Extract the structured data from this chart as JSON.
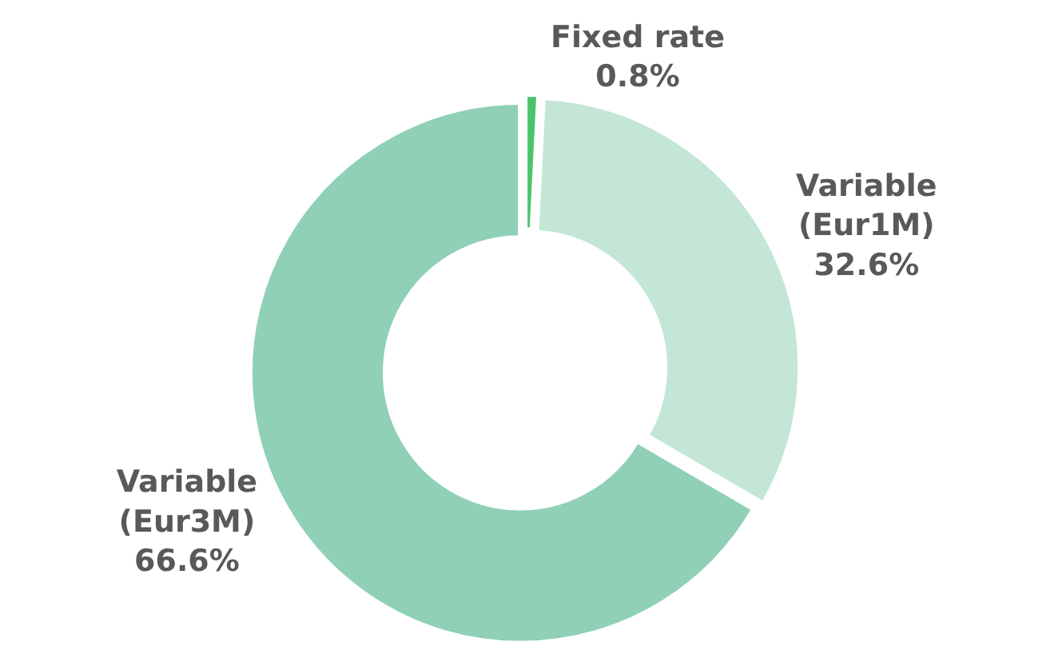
{
  "chart_data": {
    "type": "donut",
    "categories": [
      "Fixed rate",
      "Variable\n(Eur1M)",
      "Variable\n(Eur3M)"
    ],
    "values": [
      0.8,
      32.6,
      66.6
    ],
    "value_labels": [
      "0.8%",
      "32.6%",
      "66.6%"
    ],
    "colors": [
      "#4cc36a",
      "#c3e6d6",
      "#8fd0b6"
    ],
    "legend": false
  }
}
